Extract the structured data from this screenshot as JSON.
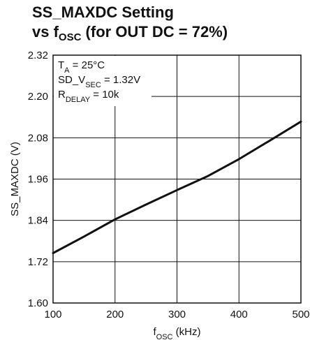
{
  "title": {
    "line1": "SS_MAXDC Setting",
    "line2_prefix": "vs f",
    "line2_sub": "OSC",
    "line2_suffix": " (for OUT DC = 72%)"
  },
  "chart_data": {
    "type": "line",
    "title": "SS_MAXDC Setting vs fOSC (for OUT DC = 72%)",
    "xlabel": "fOSC (kHz)",
    "ylabel": "SS_MAXDC (V)",
    "xlim": [
      100,
      500
    ],
    "ylim": [
      1.6,
      2.32
    ],
    "xticks": [
      100,
      200,
      300,
      400,
      500
    ],
    "yticks": [
      1.6,
      1.72,
      1.84,
      1.96,
      2.08,
      2.2,
      2.32
    ],
    "xtick_labels": [
      "100",
      "200",
      "300",
      "400",
      "500"
    ],
    "ytick_labels": [
      "1.60",
      "1.72",
      "1.84",
      "1.96",
      "2.08",
      "2.20",
      "2.32"
    ],
    "grid": true,
    "series": [
      {
        "x": [
          100,
          150,
          200,
          250,
          300,
          350,
          400,
          450,
          500
        ],
        "y": [
          1.745,
          1.793,
          1.843,
          1.886,
          1.928,
          1.969,
          2.018,
          2.072,
          2.127
        ]
      }
    ],
    "annotations": [
      {
        "parts": [
          [
            "T",
            ""
          ],
          [
            "A",
            "sub"
          ],
          [
            " = 25°C",
            ""
          ]
        ]
      },
      {
        "parts": [
          [
            "SD_V",
            ""
          ],
          [
            "SEC",
            "sub"
          ],
          [
            " = 1.32V",
            ""
          ]
        ]
      },
      {
        "parts": [
          [
            "R",
            ""
          ],
          [
            "DELAY",
            "sub"
          ],
          [
            " = 10k",
            ""
          ]
        ]
      }
    ],
    "xlabel_parts": [
      [
        "f",
        ""
      ],
      [
        "OSC",
        "sub"
      ],
      [
        " (kHz)",
        ""
      ]
    ],
    "colors": {
      "line": "#111111",
      "grid": "#111111",
      "background": "#ffffff"
    }
  }
}
